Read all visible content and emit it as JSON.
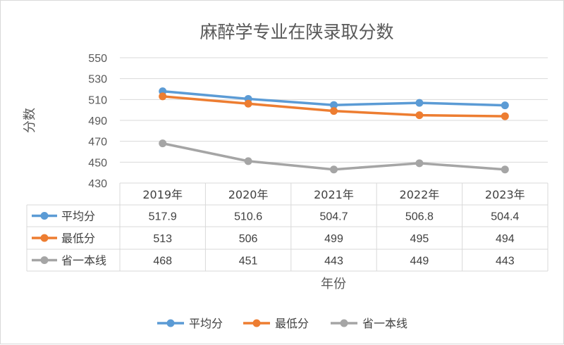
{
  "chart_data": {
    "type": "line",
    "title": "麻醉学专业在陕录取分数",
    "xlabel": "年份",
    "ylabel": "分数",
    "categories": [
      "2019年",
      "2020年",
      "2021年",
      "2022年",
      "2023年"
    ],
    "ylim": [
      430,
      550
    ],
    "yticks": [
      430,
      450,
      470,
      490,
      510,
      530,
      550
    ],
    "grid": true,
    "legend_position": "bottom",
    "data_table": true,
    "series": [
      {
        "name": "平均分",
        "color": "#5b9bd5",
        "values": [
          517.9,
          510.6,
          504.7,
          506.8,
          504.4
        ]
      },
      {
        "name": "最低分",
        "color": "#ed7d31",
        "values": [
          513,
          506,
          499,
          495,
          494
        ]
      },
      {
        "name": "省一本线",
        "color": "#a5a5a5",
        "values": [
          468,
          451,
          443,
          449,
          443
        ]
      }
    ]
  }
}
